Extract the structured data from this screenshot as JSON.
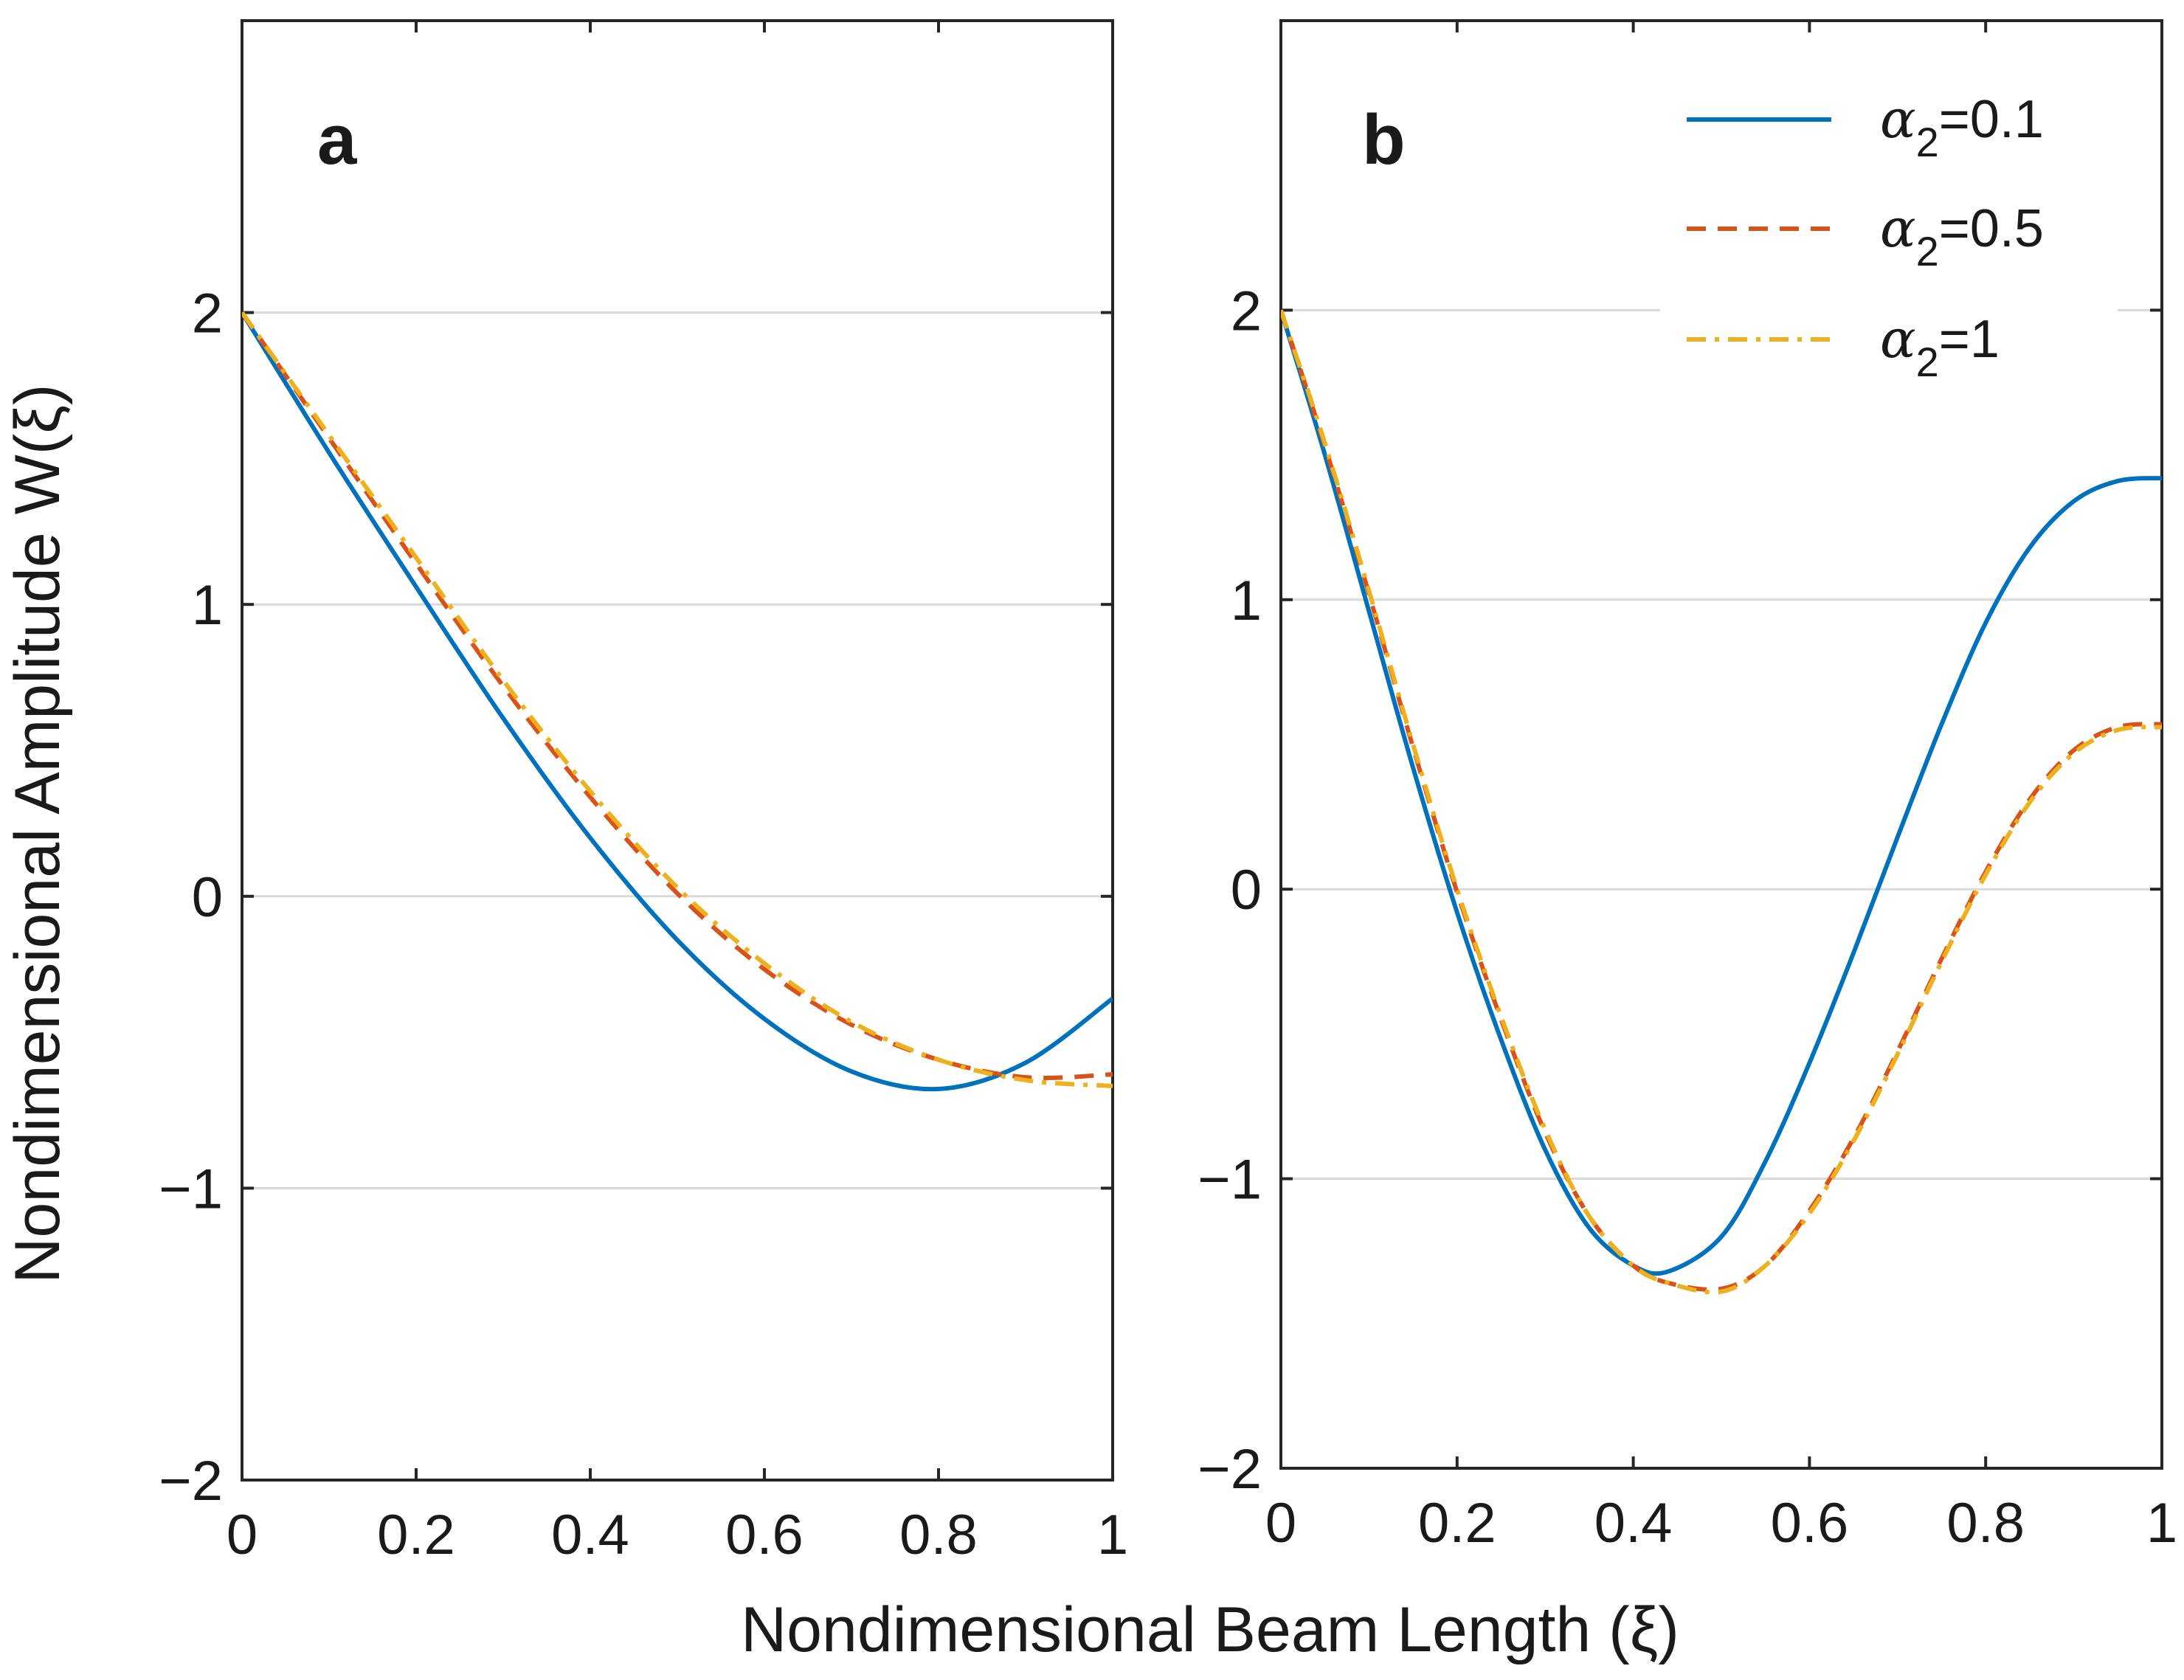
{
  "chart_data": {
    "type": "line",
    "xlabel": "Nondimensional Beam Length (ξ)",
    "ylabel": "Nondimensional Amplitude W(ξ)",
    "series_styles": [
      {
        "name": "α2=0.1",
        "color": "#0072bd",
        "dash": "solid"
      },
      {
        "name": "α2=0.5",
        "color": "#d95319",
        "dash": "dashed"
      },
      {
        "name": "α2=1",
        "color": "#edb120",
        "dash": "dashdot"
      }
    ],
    "legend": {
      "position": "top-right of panel b",
      "entries": [
        {
          "symbol": "α",
          "sub": "2",
          "rest": "=0.1",
          "color": "#0072bd",
          "dash": "solid"
        },
        {
          "symbol": "α",
          "sub": "2",
          "rest": "=0.5",
          "color": "#d95319",
          "dash": "dashed"
        },
        {
          "symbol": "α",
          "sub": "2",
          "rest": "=1",
          "color": "#edb120",
          "dash": "dashdot"
        }
      ]
    },
    "panels": [
      {
        "label": "a",
        "xlim": [
          0,
          1
        ],
        "ylim": [
          -2,
          3
        ],
        "xticks": [
          0,
          0.2,
          0.4,
          0.6,
          0.8,
          1
        ],
        "xtick_labels": [
          "0",
          "0.2",
          "0.4",
          "0.6",
          "0.8",
          "1"
        ],
        "yticks": [
          -2,
          -1,
          0,
          1,
          2
        ],
        "ytick_labels": [
          "−2",
          "−1",
          "0",
          "1",
          "2"
        ],
        "ygrid": true,
        "x": [
          0,
          0.1,
          0.2,
          0.3,
          0.4,
          0.5,
          0.6,
          0.7,
          0.8,
          0.9,
          1.0
        ],
        "series": [
          {
            "name": "α2=0.1",
            "values": [
              2.0,
              1.52,
              1.06,
              0.61,
              0.2,
              -0.15,
              -0.42,
              -0.6,
              -0.66,
              -0.57,
              -0.35
            ]
          },
          {
            "name": "α2=0.5",
            "values": [
              2.0,
              1.57,
              1.14,
              0.72,
              0.34,
              0.01,
              -0.25,
              -0.44,
              -0.56,
              -0.62,
              -0.61
            ]
          },
          {
            "name": "α2=1",
            "values": [
              2.0,
              1.58,
              1.16,
              0.74,
              0.36,
              0.03,
              -0.23,
              -0.43,
              -0.56,
              -0.63,
              -0.65
            ]
          }
        ]
      },
      {
        "label": "b",
        "xlim": [
          0,
          1
        ],
        "ylim": [
          -2,
          3
        ],
        "xticks": [
          0,
          0.2,
          0.4,
          0.6,
          0.8,
          1
        ],
        "xtick_labels": [
          "0",
          "0.2",
          "0.4",
          "0.6",
          "0.8",
          "1"
        ],
        "yticks": [
          -2,
          -1,
          0,
          1,
          2
        ],
        "ytick_labels": [
          "−2",
          "−1",
          "0",
          "1",
          "2"
        ],
        "ygrid": true,
        "x": [
          0,
          0.05,
          0.1,
          0.15,
          0.2,
          0.25,
          0.3,
          0.35,
          0.4,
          0.44,
          0.5,
          0.55,
          0.6,
          0.65,
          0.7,
          0.75,
          0.8,
          0.85,
          0.9,
          0.95,
          1.0
        ],
        "series": [
          {
            "name": "α2=0.1",
            "values": [
              2.0,
              1.5,
              0.96,
              0.42,
              -0.08,
              -0.52,
              -0.9,
              -1.17,
              -1.3,
              -1.32,
              -1.2,
              -0.94,
              -0.6,
              -0.22,
              0.18,
              0.57,
              0.92,
              1.18,
              1.34,
              1.41,
              1.42
            ]
          },
          {
            "name": "α2=0.5",
            "values": [
              2.0,
              1.53,
              1.02,
              0.49,
              -0.01,
              -0.45,
              -0.84,
              -1.13,
              -1.3,
              -1.36,
              -1.38,
              -1.3,
              -1.11,
              -0.86,
              -0.56,
              -0.24,
              0.06,
              0.31,
              0.48,
              0.56,
              0.57
            ]
          },
          {
            "name": "α2=1",
            "values": [
              2.0,
              1.54,
              1.03,
              0.5,
              0.0,
              -0.44,
              -0.83,
              -1.13,
              -1.3,
              -1.36,
              -1.39,
              -1.3,
              -1.12,
              -0.87,
              -0.57,
              -0.25,
              0.05,
              0.3,
              0.47,
              0.55,
              0.56
            ]
          }
        ]
      }
    ]
  }
}
